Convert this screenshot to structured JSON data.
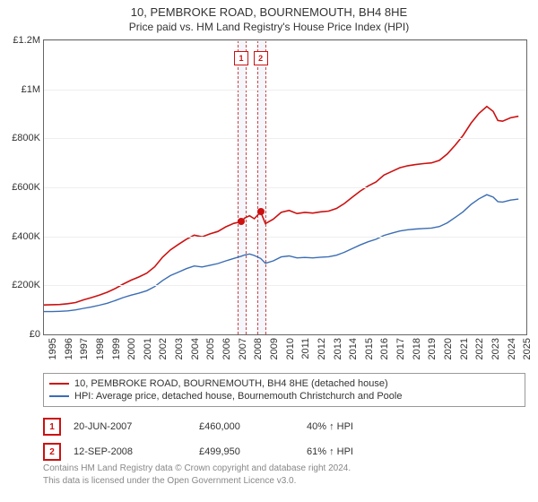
{
  "title": "10, PEMBROKE ROAD, BOURNEMOUTH, BH4 8HE",
  "subtitle": "Price paid vs. HM Land Registry's House Price Index (HPI)",
  "chart": {
    "type": "line",
    "background_color": "#ffffff",
    "grid_color": "#eeeeee",
    "border_color": "#666666",
    "y": {
      "min": 0,
      "max": 1200000,
      "tick_step": 200000,
      "tick_labels": [
        "£0",
        "£200K",
        "£400K",
        "£600K",
        "£800K",
        "£1M",
        "£1.2M"
      ],
      "label_fontsize": 11,
      "label_color": "#333333"
    },
    "x": {
      "min": 1995,
      "max": 2025.5,
      "ticks": [
        1995,
        1996,
        1997,
        1998,
        1999,
        2000,
        2001,
        2002,
        2003,
        2004,
        2005,
        2006,
        2007,
        2008,
        2009,
        2010,
        2011,
        2012,
        2013,
        2014,
        2015,
        2016,
        2017,
        2018,
        2019,
        2020,
        2021,
        2022,
        2023,
        2024,
        2025
      ],
      "label_fontsize": 11,
      "label_color": "#333333",
      "label_rotation_deg": -90
    },
    "series": [
      {
        "name": "price_paid",
        "label": "10, PEMBROKE ROAD, BOURNEMOUTH, BH4 8HE (detached house)",
        "color": "#cc1111",
        "line_width": 1.6,
        "points": [
          [
            1995.0,
            120000
          ],
          [
            1995.5,
            121000
          ],
          [
            1996.0,
            122000
          ],
          [
            1996.5,
            125000
          ],
          [
            1997.0,
            130000
          ],
          [
            1997.5,
            141000
          ],
          [
            1998.0,
            150000
          ],
          [
            1998.5,
            160000
          ],
          [
            1999.0,
            172000
          ],
          [
            1999.5,
            187000
          ],
          [
            2000.0,
            205000
          ],
          [
            2000.5,
            221000
          ],
          [
            2001.0,
            234000
          ],
          [
            2001.5,
            250000
          ],
          [
            2002.0,
            276000
          ],
          [
            2002.5,
            315000
          ],
          [
            2003.0,
            345000
          ],
          [
            2003.5,
            367000
          ],
          [
            2004.0,
            388000
          ],
          [
            2004.5,
            405000
          ],
          [
            2005.0,
            398000
          ],
          [
            2005.5,
            410000
          ],
          [
            2006.0,
            420000
          ],
          [
            2006.5,
            439000
          ],
          [
            2007.0,
            453000
          ],
          [
            2007.47,
            460000
          ],
          [
            2007.7,
            475000
          ],
          [
            2008.0,
            484000
          ],
          [
            2008.3,
            472000
          ],
          [
            2008.7,
            499950
          ],
          [
            2009.0,
            452000
          ],
          [
            2009.5,
            470000
          ],
          [
            2010.0,
            498000
          ],
          [
            2010.5,
            506000
          ],
          [
            2011.0,
            493000
          ],
          [
            2011.5,
            498000
          ],
          [
            2012.0,
            495000
          ],
          [
            2012.5,
            500000
          ],
          [
            2013.0,
            503000
          ],
          [
            2013.5,
            514000
          ],
          [
            2014.0,
            534000
          ],
          [
            2014.5,
            560000
          ],
          [
            2015.0,
            585000
          ],
          [
            2015.5,
            606000
          ],
          [
            2016.0,
            622000
          ],
          [
            2016.5,
            650000
          ],
          [
            2017.0,
            665000
          ],
          [
            2017.5,
            680000
          ],
          [
            2018.0,
            688000
          ],
          [
            2018.5,
            693000
          ],
          [
            2019.0,
            697000
          ],
          [
            2019.5,
            700000
          ],
          [
            2020.0,
            710000
          ],
          [
            2020.5,
            736000
          ],
          [
            2021.0,
            772000
          ],
          [
            2021.5,
            812000
          ],
          [
            2022.0,
            862000
          ],
          [
            2022.5,
            902000
          ],
          [
            2023.0,
            930000
          ],
          [
            2023.4,
            910000
          ],
          [
            2023.7,
            873000
          ],
          [
            2024.0,
            870000
          ],
          [
            2024.5,
            884000
          ],
          [
            2025.0,
            890000
          ]
        ]
      },
      {
        "name": "hpi",
        "label": "HPI: Average price, detached house, Bournemouth Christchurch and Poole",
        "color": "#3b6db3",
        "line_width": 1.4,
        "points": [
          [
            1995.0,
            93000
          ],
          [
            1995.5,
            93000
          ],
          [
            1996.0,
            94000
          ],
          [
            1996.5,
            96000
          ],
          [
            1997.0,
            100000
          ],
          [
            1997.5,
            106000
          ],
          [
            1998.0,
            112000
          ],
          [
            1998.5,
            119000
          ],
          [
            1999.0,
            127000
          ],
          [
            1999.5,
            138000
          ],
          [
            2000.0,
            150000
          ],
          [
            2000.5,
            160000
          ],
          [
            2001.0,
            168000
          ],
          [
            2001.5,
            178000
          ],
          [
            2002.0,
            195000
          ],
          [
            2002.5,
            220000
          ],
          [
            2003.0,
            240000
          ],
          [
            2003.5,
            254000
          ],
          [
            2004.0,
            268000
          ],
          [
            2004.5,
            279000
          ],
          [
            2005.0,
            275000
          ],
          [
            2005.5,
            282000
          ],
          [
            2006.0,
            289000
          ],
          [
            2006.5,
            300000
          ],
          [
            2007.0,
            310000
          ],
          [
            2007.47,
            319000
          ],
          [
            2007.7,
            324000
          ],
          [
            2008.0,
            328000
          ],
          [
            2008.3,
            322000
          ],
          [
            2008.7,
            310000
          ],
          [
            2009.0,
            290000
          ],
          [
            2009.5,
            300000
          ],
          [
            2010.0,
            316000
          ],
          [
            2010.5,
            320000
          ],
          [
            2011.0,
            312000
          ],
          [
            2011.5,
            314000
          ],
          [
            2012.0,
            312000
          ],
          [
            2012.5,
            315000
          ],
          [
            2013.0,
            317000
          ],
          [
            2013.5,
            323000
          ],
          [
            2014.0,
            335000
          ],
          [
            2014.5,
            350000
          ],
          [
            2015.0,
            365000
          ],
          [
            2015.5,
            378000
          ],
          [
            2016.0,
            388000
          ],
          [
            2016.5,
            404000
          ],
          [
            2017.0,
            413000
          ],
          [
            2017.5,
            422000
          ],
          [
            2018.0,
            427000
          ],
          [
            2018.5,
            430000
          ],
          [
            2019.0,
            432000
          ],
          [
            2019.5,
            434000
          ],
          [
            2020.0,
            440000
          ],
          [
            2020.5,
            455000
          ],
          [
            2021.0,
            477000
          ],
          [
            2021.5,
            500000
          ],
          [
            2022.0,
            530000
          ],
          [
            2022.5,
            553000
          ],
          [
            2023.0,
            570000
          ],
          [
            2023.4,
            560000
          ],
          [
            2023.7,
            542000
          ],
          [
            2024.0,
            540000
          ],
          [
            2024.5,
            548000
          ],
          [
            2025.0,
            552000
          ]
        ]
      }
    ],
    "sale_markers": [
      {
        "index": "1",
        "year": 2007.47,
        "price": 460000,
        "band_color": "#f4f6fb",
        "border_color": "#cc4444"
      },
      {
        "index": "2",
        "year": 2008.7,
        "price": 499950,
        "band_color": "#f4f6fb",
        "border_color": "#cc4444"
      }
    ]
  },
  "legend": {
    "border_color": "#999999",
    "fontsize": 11
  },
  "sales_table": {
    "badge_border_color": "#cc1111",
    "badge_text_color": "#cc1111",
    "rows": [
      {
        "badge": "1",
        "date": "20-JUN-2007",
        "price": "£460,000",
        "delta": "40% ↑ HPI"
      },
      {
        "badge": "2",
        "date": "12-SEP-2008",
        "price": "£499,950",
        "delta": "61% ↑ HPI"
      }
    ]
  },
  "footer": {
    "line1": "Contains HM Land Registry data © Crown copyright and database right 2024.",
    "line2": "This data is licensed under the Open Government Licence v3.0.",
    "color": "#888888",
    "fontsize": 10
  }
}
